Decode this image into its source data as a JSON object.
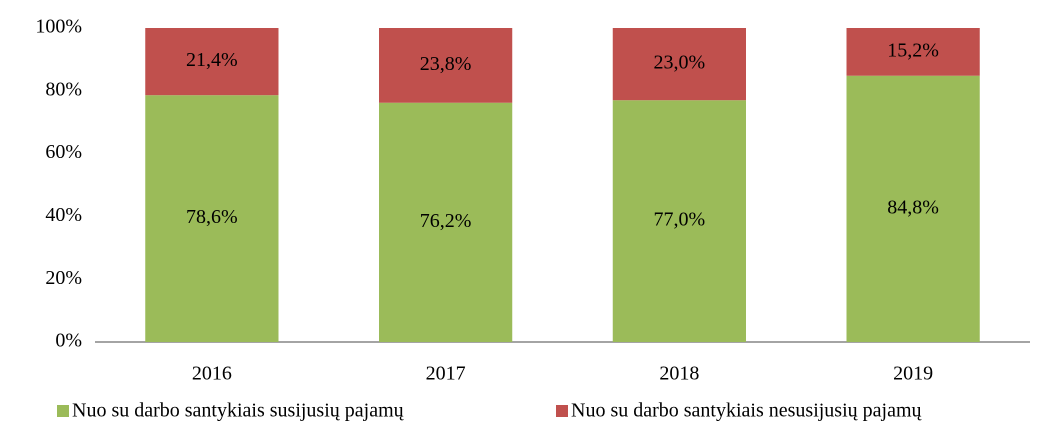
{
  "chart_data": {
    "type": "stacked_bar",
    "categories": [
      "2016",
      "2017",
      "2018",
      "2019"
    ],
    "series": [
      {
        "name": "Nuo su darbo santykiais susijusių pajamų",
        "color": "#9bbb59",
        "values": [
          78.6,
          76.2,
          77.0,
          84.8
        ],
        "value_labels": [
          "78,6%",
          "76,2%",
          "77,0%",
          "84,8%"
        ]
      },
      {
        "name": "Nuo su darbo santykiais nesusijusių pajamų",
        "color": "#c0504d",
        "values": [
          21.4,
          23.8,
          23.0,
          15.2
        ],
        "value_labels": [
          "21,4%",
          "23,8%",
          "23,0%",
          "15,2%"
        ]
      }
    ],
    "ylim": [
      0,
      100
    ],
    "yticks": [
      {
        "value": 0,
        "label": "0%"
      },
      {
        "value": 20,
        "label": "20%"
      },
      {
        "value": 40,
        "label": "40%"
      },
      {
        "value": 60,
        "label": "60%"
      },
      {
        "value": 80,
        "label": "80%"
      },
      {
        "value": 100,
        "label": "100%"
      }
    ],
    "legend": "bottom"
  }
}
